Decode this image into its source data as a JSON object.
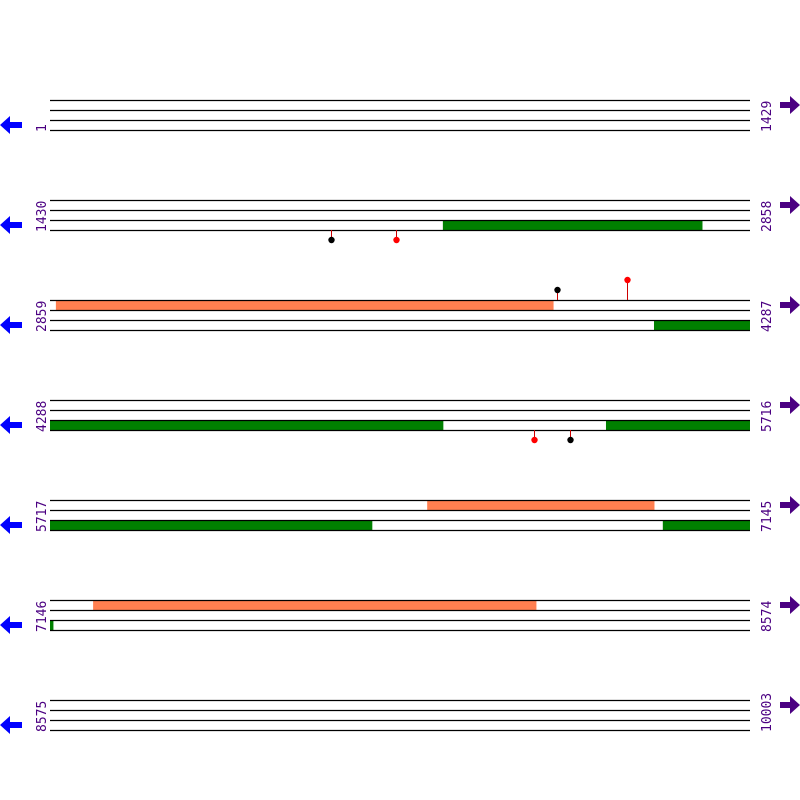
{
  "colors": {
    "line": "#000000",
    "label": "#4b0082",
    "left_arrow": "#0000ff",
    "right_arrow": "#4b0082",
    "top_track_feature": "#ff7f50",
    "bottom_track_feature": "#008000",
    "marker_red": "#ff0000",
    "marker_black": "#000000",
    "marker_stem": "#cc0000"
  },
  "icons": {
    "left": "arrow-left-icon",
    "right": "arrow-right-icon"
  },
  "rows": [
    {
      "start": "1",
      "end": "1429",
      "s": 1,
      "e": 1429,
      "features": [],
      "markers": []
    },
    {
      "start": "1430",
      "end": "2858",
      "s": 1430,
      "e": 2858,
      "features": [
        {
          "track": "bottom",
          "from": 2232,
          "to": 2761
        }
      ],
      "markers": [
        {
          "pos": 2004,
          "color": "black",
          "side": "below"
        },
        {
          "pos": 2136,
          "color": "red",
          "side": "below"
        }
      ]
    },
    {
      "start": "2859",
      "end": "4287",
      "s": 2859,
      "e": 4287,
      "features": [
        {
          "track": "top",
          "from": 2871,
          "to": 3886
        },
        {
          "track": "bottom",
          "from": 4092,
          "to": 4287
        }
      ],
      "markers": [
        {
          "pos": 3894,
          "color": "black",
          "side": "above",
          "level": 1
        },
        {
          "pos": 4037,
          "color": "red",
          "side": "above",
          "level": 2
        }
      ]
    },
    {
      "start": "4288",
      "end": "5716",
      "s": 4288,
      "e": 5716,
      "features": [
        {
          "track": "bottom",
          "from": 4288,
          "to": 5090
        },
        {
          "track": "bottom",
          "from": 5423,
          "to": 5716
        }
      ],
      "markers": [
        {
          "pos": 5276,
          "color": "red",
          "side": "below"
        },
        {
          "pos": 5349,
          "color": "black",
          "side": "below"
        }
      ]
    },
    {
      "start": "5717",
      "end": "7145",
      "s": 5717,
      "e": 7145,
      "features": [
        {
          "track": "top",
          "from": 6487,
          "to": 6950
        },
        {
          "track": "bottom",
          "from": 5717,
          "to": 6374
        },
        {
          "track": "bottom",
          "from": 6968,
          "to": 7145
        }
      ],
      "markers": []
    },
    {
      "start": "7146",
      "end": "8574",
      "s": 7146,
      "e": 8574,
      "features": [
        {
          "track": "top",
          "from": 7234,
          "to": 8138
        },
        {
          "track": "bottom",
          "from": 7146,
          "to": 7152
        }
      ],
      "markers": []
    },
    {
      "start": "8575",
      "end": "10003",
      "s": 8575,
      "e": 10003,
      "features": [],
      "markers": []
    }
  ]
}
